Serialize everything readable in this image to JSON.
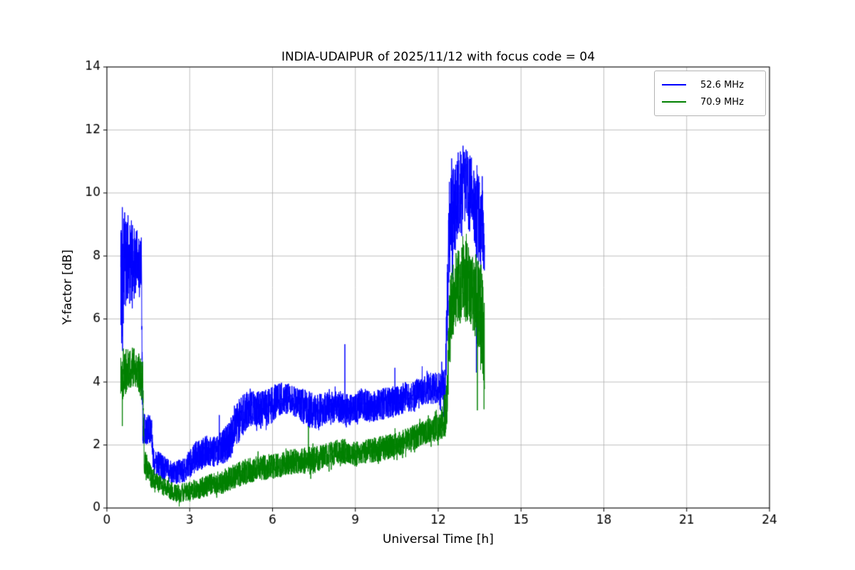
{
  "chart_data": {
    "type": "line",
    "title": "INDIA-UDAIPUR of 2025/11/12 with focus code = 04",
    "xlabel": "Universal Time [h]",
    "ylabel": "Y-factor [dB]",
    "xlim": [
      0,
      24
    ],
    "ylim": [
      0,
      14
    ],
    "xticks": [
      0,
      3,
      6,
      9,
      12,
      15,
      18,
      21,
      24
    ],
    "yticks": [
      0,
      2,
      4,
      6,
      8,
      10,
      12,
      14
    ],
    "grid": true,
    "grid_color": "#b0b0b0",
    "background_color": "#ffffff",
    "axes_color": "#000000",
    "legend_position": "upper right",
    "series": [
      {
        "name": "52.6 MHz",
        "color": "#0000ff",
        "x_start": 0.5,
        "x_end": 13.68,
        "envelope": [
          [
            0.5,
            7.2,
            2.2
          ],
          [
            0.7,
            7.8,
            1.6
          ],
          [
            1.0,
            7.8,
            1.2
          ],
          [
            1.25,
            7.6,
            1.0
          ],
          [
            1.3,
            2.5,
            0.5
          ],
          [
            1.62,
            2.5,
            0.45
          ],
          [
            1.68,
            1.5,
            0.45
          ],
          [
            2.0,
            1.3,
            0.4
          ],
          [
            2.4,
            1.1,
            0.35
          ],
          [
            2.8,
            1.2,
            0.4
          ],
          [
            3.2,
            1.6,
            0.5
          ],
          [
            3.6,
            1.8,
            0.5
          ],
          [
            4.0,
            1.8,
            0.5
          ],
          [
            4.4,
            2.1,
            0.6
          ],
          [
            4.8,
            2.8,
            0.7
          ],
          [
            5.2,
            3.2,
            0.6
          ],
          [
            5.6,
            3.1,
            0.6
          ],
          [
            6.0,
            3.3,
            0.6
          ],
          [
            6.4,
            3.5,
            0.5
          ],
          [
            6.8,
            3.4,
            0.5
          ],
          [
            7.2,
            3.2,
            0.6
          ],
          [
            7.6,
            3.0,
            0.6
          ],
          [
            8.0,
            3.2,
            0.5
          ],
          [
            8.4,
            3.2,
            0.5
          ],
          [
            8.8,
            3.1,
            0.5
          ],
          [
            9.2,
            3.3,
            0.5
          ],
          [
            9.6,
            3.2,
            0.5
          ],
          [
            10.0,
            3.3,
            0.5
          ],
          [
            10.4,
            3.4,
            0.5
          ],
          [
            10.8,
            3.5,
            0.5
          ],
          [
            11.2,
            3.6,
            0.5
          ],
          [
            11.6,
            3.8,
            0.5
          ],
          [
            12.0,
            3.8,
            0.5
          ],
          [
            12.25,
            3.6,
            0.9
          ],
          [
            12.4,
            8.8,
            1.6
          ],
          [
            12.7,
            9.9,
            1.4
          ],
          [
            13.0,
            10.2,
            1.2
          ],
          [
            13.2,
            9.9,
            1.3
          ],
          [
            13.45,
            9.2,
            1.5
          ],
          [
            13.68,
            8.6,
            1.2
          ]
        ],
        "spikes": [
          [
            0.56,
            9.55
          ],
          [
            4.07,
            2.95
          ],
          [
            8.62,
            5.2
          ],
          [
            10.43,
            4.45
          ],
          [
            11.42,
            4.5
          ],
          [
            12.9,
            11.5
          ],
          [
            13.38,
            4.3
          ]
        ],
        "seed": 42
      },
      {
        "name": "70.9 MHz",
        "color": "#008000",
        "x_start": 0.5,
        "x_end": 13.68,
        "envelope": [
          [
            0.5,
            4.2,
            0.9
          ],
          [
            0.8,
            4.5,
            0.7
          ],
          [
            1.1,
            4.4,
            0.6
          ],
          [
            1.3,
            4.0,
            0.7
          ],
          [
            1.35,
            1.5,
            0.4
          ],
          [
            1.6,
            1.0,
            0.35
          ],
          [
            1.9,
            0.75,
            0.3
          ],
          [
            2.2,
            0.6,
            0.3
          ],
          [
            2.6,
            0.45,
            0.3
          ],
          [
            3.0,
            0.55,
            0.3
          ],
          [
            3.4,
            0.65,
            0.35
          ],
          [
            3.8,
            0.75,
            0.35
          ],
          [
            4.2,
            0.85,
            0.4
          ],
          [
            4.6,
            1.0,
            0.4
          ],
          [
            5.0,
            1.15,
            0.4
          ],
          [
            5.4,
            1.25,
            0.4
          ],
          [
            5.8,
            1.3,
            0.4
          ],
          [
            6.2,
            1.35,
            0.4
          ],
          [
            6.6,
            1.45,
            0.4
          ],
          [
            7.0,
            1.5,
            0.4
          ],
          [
            7.4,
            1.5,
            0.45
          ],
          [
            7.8,
            1.6,
            0.4
          ],
          [
            8.2,
            1.75,
            0.4
          ],
          [
            8.6,
            1.8,
            0.4
          ],
          [
            9.0,
            1.7,
            0.4
          ],
          [
            9.4,
            1.8,
            0.4
          ],
          [
            9.8,
            1.85,
            0.4
          ],
          [
            10.2,
            1.95,
            0.4
          ],
          [
            10.6,
            2.05,
            0.4
          ],
          [
            11.0,
            2.2,
            0.4
          ],
          [
            11.4,
            2.35,
            0.4
          ],
          [
            11.8,
            2.5,
            0.4
          ],
          [
            12.1,
            2.6,
            0.45
          ],
          [
            12.3,
            3.2,
            1.0
          ],
          [
            12.45,
            6.6,
            1.3
          ],
          [
            12.7,
            7.0,
            1.2
          ],
          [
            13.0,
            7.2,
            1.3
          ],
          [
            13.3,
            6.9,
            1.3
          ],
          [
            13.5,
            6.3,
            1.6
          ],
          [
            13.68,
            5.2,
            2.2
          ]
        ],
        "spikes": [
          [
            0.56,
            2.6
          ],
          [
            2.62,
            0.05
          ],
          [
            7.3,
            2.6
          ],
          [
            13.02,
            8.7
          ],
          [
            13.42,
            3.1
          ]
        ],
        "seed": 1337
      }
    ]
  }
}
